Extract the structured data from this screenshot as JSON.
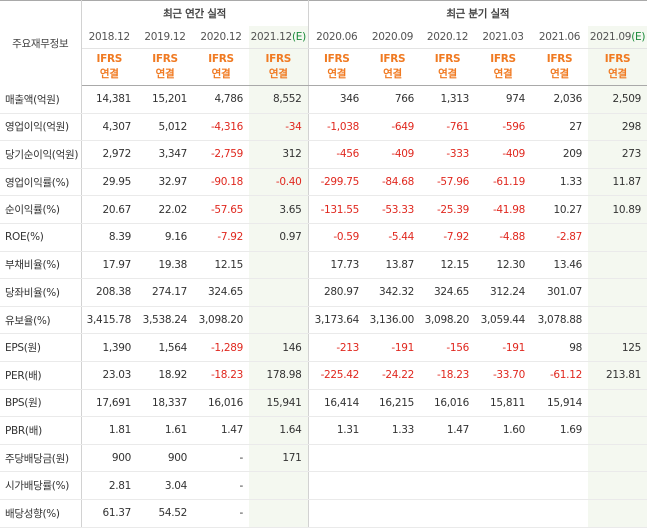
{
  "header": {
    "label": "주요재무정보",
    "annual_title": "최근 연간 실적",
    "quarter_title": "최근 분기 실적",
    "periods": [
      "2018.12",
      "2019.12",
      "2020.12",
      "2021.12",
      "2020.06",
      "2020.09",
      "2020.12",
      "2021.03",
      "2021.06",
      "2021.09"
    ],
    "estimate_mark": "(E)",
    "ifrs_top": "IFRS",
    "ifrs_bottom": "연결"
  },
  "rows": [
    {
      "label": "매출액(억원)",
      "values": [
        "14,381",
        "15,201",
        "4,786",
        "8,552",
        "346",
        "766",
        "1,313",
        "974",
        "2,036",
        "2,509"
      ]
    },
    {
      "label": "영업이익(억원)",
      "values": [
        "4,307",
        "5,012",
        "-4,316",
        "-34",
        "-1,038",
        "-649",
        "-761",
        "-596",
        "27",
        "298"
      ]
    },
    {
      "label": "당기순이익(억원)",
      "values": [
        "2,972",
        "3,347",
        "-2,759",
        "312",
        "-456",
        "-409",
        "-333",
        "-409",
        "209",
        "273"
      ]
    },
    {
      "label": "영업이익률(%)",
      "values": [
        "29.95",
        "32.97",
        "-90.18",
        "-0.40",
        "-299.75",
        "-84.68",
        "-57.96",
        "-61.19",
        "1.33",
        "11.87"
      ]
    },
    {
      "label": "순이익률(%)",
      "values": [
        "20.67",
        "22.02",
        "-57.65",
        "3.65",
        "-131.55",
        "-53.33",
        "-25.39",
        "-41.98",
        "10.27",
        "10.89"
      ]
    },
    {
      "label": "ROE(%)",
      "values": [
        "8.39",
        "9.16",
        "-7.92",
        "0.97",
        "-0.59",
        "-5.44",
        "-7.92",
        "-4.88",
        "-2.87",
        ""
      ]
    },
    {
      "label": "부채비율(%)",
      "values": [
        "17.97",
        "19.38",
        "12.15",
        "",
        "17.73",
        "13.87",
        "12.15",
        "12.30",
        "13.46",
        ""
      ]
    },
    {
      "label": "당좌비율(%)",
      "values": [
        "208.38",
        "274.17",
        "324.65",
        "",
        "280.97",
        "342.32",
        "324.65",
        "312.24",
        "301.07",
        ""
      ]
    },
    {
      "label": "유보율(%)",
      "values": [
        "3,415.78",
        "3,538.24",
        "3,098.20",
        "",
        "3,173.64",
        "3,136.00",
        "3,098.20",
        "3,059.44",
        "3,078.88",
        ""
      ]
    },
    {
      "label": "EPS(원)",
      "values": [
        "1,390",
        "1,564",
        "-1,289",
        "146",
        "-213",
        "-191",
        "-156",
        "-191",
        "98",
        "125"
      ]
    },
    {
      "label": "PER(배)",
      "values": [
        "23.03",
        "18.92",
        "-18.23",
        "178.98",
        "-225.42",
        "-24.22",
        "-18.23",
        "-33.70",
        "-61.12",
        "213.81"
      ]
    },
    {
      "label": "BPS(원)",
      "values": [
        "17,691",
        "18,337",
        "16,016",
        "15,941",
        "16,414",
        "16,215",
        "16,016",
        "15,811",
        "15,914",
        ""
      ]
    },
    {
      "label": "PBR(배)",
      "values": [
        "1.81",
        "1.61",
        "1.47",
        "1.64",
        "1.31",
        "1.33",
        "1.47",
        "1.60",
        "1.69",
        ""
      ]
    },
    {
      "label": "주당배당금(원)",
      "values": [
        "900",
        "900",
        "-",
        "171",
        "",
        "",
        "",
        "",
        "",
        ""
      ]
    },
    {
      "label": "시가배당률(%)",
      "values": [
        "2.81",
        "3.04",
        "-",
        "",
        "",
        "",
        "",
        "",
        "",
        ""
      ]
    },
    {
      "label": "배당성향(%)",
      "values": [
        "61.37",
        "54.52",
        "-",
        "",
        "",
        "",
        "",
        "",
        "",
        ""
      ]
    }
  ],
  "colors": {
    "ifrs": "#f07a22",
    "negative": "#e0281f",
    "estimate": "#1a8a3a",
    "shade": "#f4f8f0"
  }
}
